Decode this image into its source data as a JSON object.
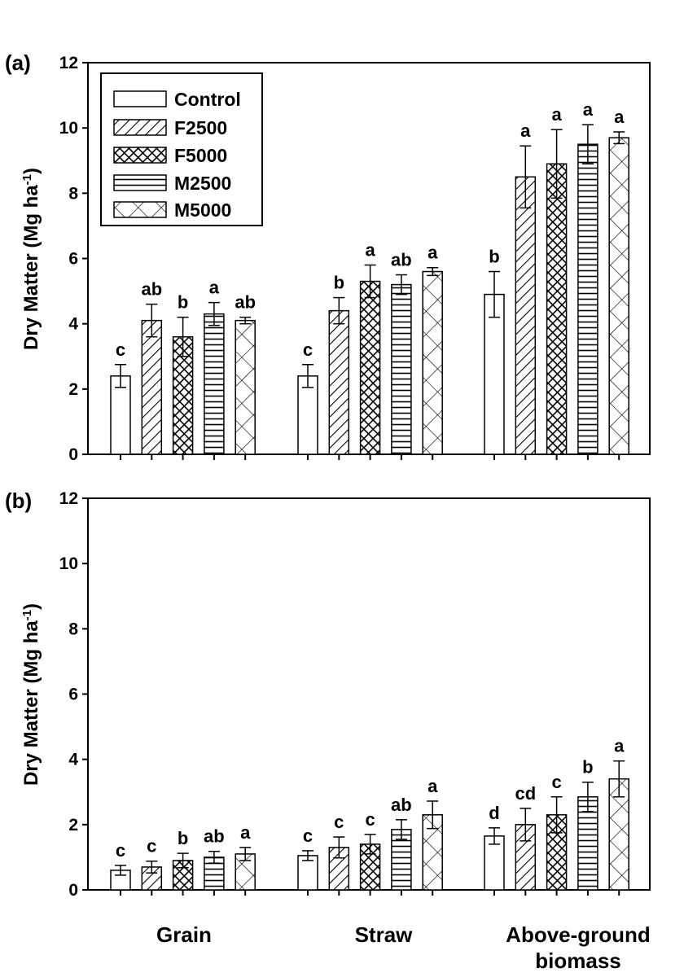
{
  "colors": {
    "axis": "#000000",
    "bar_fill": "#ffffff",
    "hatch": "#000000"
  },
  "categories": [
    "Grain",
    "Straw",
    "Above-ground biomass"
  ],
  "category_label_lines": [
    [
      "Grain"
    ],
    [
      "Straw"
    ],
    [
      "Above-ground",
      "biomass"
    ]
  ],
  "legend": [
    {
      "label": "Control",
      "pattern": "none"
    },
    {
      "label": "F2500",
      "pattern": "diagonal"
    },
    {
      "label": "F5000",
      "pattern": "crosshatch"
    },
    {
      "label": "M2500",
      "pattern": "horizontal"
    },
    {
      "label": "M5000",
      "pattern": "x-cross"
    }
  ],
  "chart_data": [
    {
      "type": "bar",
      "panel_label": "(a)",
      "ylabel": "Dry Matter (Mg ha",
      "ylabel_sup": "-1",
      "ylabel_close": ")",
      "ylim": [
        0,
        12
      ],
      "yticks": [
        "0",
        "2",
        "4",
        "6",
        "8",
        "10",
        "12"
      ],
      "grid": false,
      "legend_position": "top-left",
      "categories": [
        "Grain",
        "Straw",
        "Above-ground biomass"
      ],
      "series": [
        {
          "name": "Control",
          "values": [
            2.4,
            2.4,
            4.9
          ],
          "errors": [
            0.35,
            0.35,
            0.7
          ],
          "letters": [
            "c",
            "c",
            "b"
          ]
        },
        {
          "name": "F2500",
          "values": [
            4.1,
            4.4,
            8.5
          ],
          "errors": [
            0.5,
            0.4,
            0.95
          ],
          "letters": [
            "ab",
            "b",
            "a"
          ]
        },
        {
          "name": "F5000",
          "values": [
            3.6,
            5.3,
            8.9
          ],
          "errors": [
            0.6,
            0.5,
            1.05
          ],
          "letters": [
            "b",
            "a",
            "a"
          ]
        },
        {
          "name": "M2500",
          "values": [
            4.3,
            5.2,
            9.5
          ],
          "errors": [
            0.35,
            0.3,
            0.6
          ],
          "letters": [
            "a",
            "ab",
            "a"
          ]
        },
        {
          "name": "M5000",
          "values": [
            4.1,
            5.6,
            9.7
          ],
          "errors": [
            0.1,
            0.12,
            0.18
          ],
          "letters": [
            "ab",
            "a",
            "a"
          ]
        }
      ]
    },
    {
      "type": "bar",
      "panel_label": "(b)",
      "ylabel": "Dry Matter (Mg ha",
      "ylabel_sup": "-1",
      "ylabel_close": ")",
      "ylim": [
        0,
        12
      ],
      "yticks": [
        "0",
        "2",
        "4",
        "6",
        "8",
        "10",
        "12"
      ],
      "grid": false,
      "categories": [
        "Grain",
        "Straw",
        "Above-ground biomass"
      ],
      "series": [
        {
          "name": "Control",
          "values": [
            0.6,
            1.05,
            1.65
          ],
          "errors": [
            0.15,
            0.15,
            0.25
          ],
          "letters": [
            "c",
            "c",
            "d"
          ]
        },
        {
          "name": "F2500",
          "values": [
            0.7,
            1.3,
            2.0
          ],
          "errors": [
            0.18,
            0.32,
            0.5
          ],
          "letters": [
            "c",
            "c",
            "cd"
          ]
        },
        {
          "name": "F5000",
          "values": [
            0.9,
            1.4,
            2.3
          ],
          "errors": [
            0.22,
            0.3,
            0.55
          ],
          "letters": [
            "b",
            "c",
            "c"
          ]
        },
        {
          "name": "M2500",
          "values": [
            1.0,
            1.85,
            2.85
          ],
          "errors": [
            0.18,
            0.3,
            0.45
          ],
          "letters": [
            "ab",
            "ab",
            "b"
          ]
        },
        {
          "name": "M5000",
          "values": [
            1.1,
            2.3,
            3.4
          ],
          "errors": [
            0.2,
            0.42,
            0.55
          ],
          "letters": [
            "a",
            "a",
            "a"
          ]
        }
      ]
    }
  ]
}
